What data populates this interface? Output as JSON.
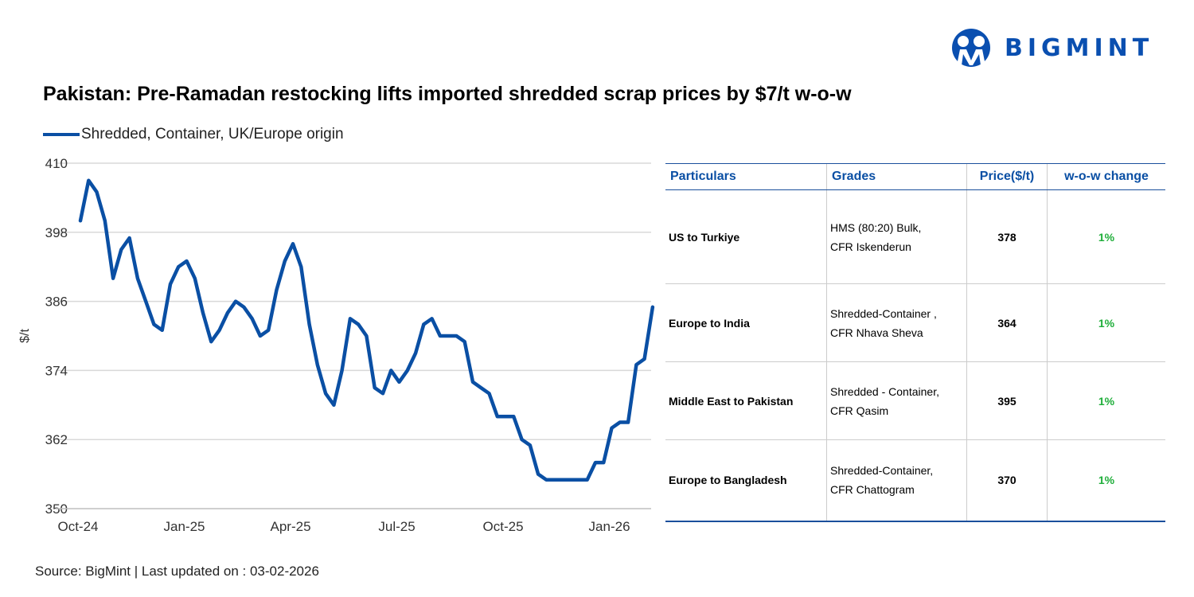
{
  "brand": {
    "name": "BIGMINT",
    "color": "#0a4fb0"
  },
  "title": "Pakistan: Pre-Ramadan restocking lifts imported shredded scrap prices by $7/t w-o-w",
  "chart_data": {
    "type": "line",
    "title": "",
    "xlabel": "",
    "ylabel": "$/t",
    "ylim": [
      350,
      410
    ],
    "yticks": [
      350,
      362,
      374,
      386,
      398,
      410
    ],
    "xtick_labels": [
      "Oct-24",
      "Jan-25",
      "Apr-25",
      "Jul-25",
      "Oct-25",
      "Jan-26"
    ],
    "xtick_index": [
      0,
      13,
      26,
      39,
      52,
      65
    ],
    "grid": true,
    "legend_position": "top-left",
    "series": [
      {
        "name": "Shredded, Container, UK/Europe origin",
        "color": "#0a4fa4",
        "values": [
          400,
          407,
          405,
          400,
          390,
          395,
          397,
          390,
          386,
          382,
          381,
          389,
          392,
          393,
          390,
          384,
          379,
          381,
          384,
          386,
          385,
          383,
          380,
          381,
          388,
          393,
          396,
          392,
          382,
          375,
          370,
          368,
          374,
          383,
          382,
          380,
          371,
          370,
          374,
          372,
          374,
          377,
          382,
          383,
          380,
          380,
          380,
          379,
          372,
          371,
          370,
          366,
          366,
          366,
          362,
          361,
          356,
          355,
          355,
          355,
          355,
          355,
          355,
          358,
          358,
          364,
          365,
          365,
          375,
          376,
          385
        ]
      }
    ]
  },
  "table": {
    "headers": [
      "Particulars",
      "Grades",
      "Price($/t)",
      "w-o-w change"
    ],
    "rows": [
      {
        "particular": "US to Turkiye",
        "grade1": "HMS (80:20) Bulk,",
        "grade2": "CFR Iskenderun",
        "price": "378",
        "change": "1%"
      },
      {
        "particular": "Europe to India",
        "grade1": "Shredded-Container ,",
        "grade2": "CFR Nhava Sheva",
        "price": "364",
        "change": "1%"
      },
      {
        "particular": "Middle East to Pakistan",
        "grade1": "Shredded - Container,",
        "grade2": "CFR Qasim",
        "price": "395",
        "change": "1%"
      },
      {
        "particular": "Europe to Bangladesh",
        "grade1": "Shredded-Container,",
        "grade2": "CFR Chattogram",
        "price": "370",
        "change": "1%"
      }
    ]
  },
  "source": "Source: BigMint | Last updated on : 03-02-2026"
}
